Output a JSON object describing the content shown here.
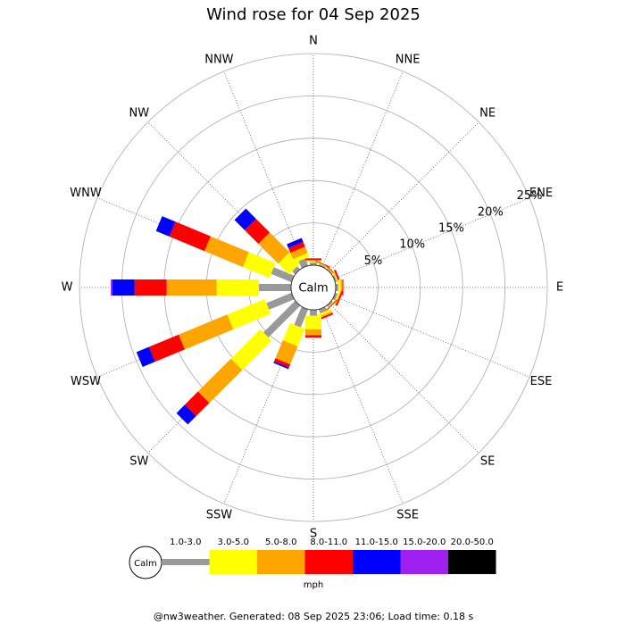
{
  "chart_data": {
    "type": "windrose",
    "title": "Wind rose for 04 Sep 2025",
    "categories": [
      "N",
      "NNE",
      "NE",
      "ENE",
      "E",
      "ESE",
      "SE",
      "SSE",
      "S",
      "SSW",
      "SW",
      "WSW",
      "W",
      "WNW",
      "NW",
      "NNW"
    ],
    "series": [
      {
        "name": "1.0-3.0",
        "color": "#999999",
        "values": [
          0.3,
          0.2,
          0.1,
          0.2,
          0.3,
          0.3,
          0.2,
          0.5,
          0.7,
          2.3,
          5.3,
          3.2,
          3.8,
          2.6,
          0.5,
          0.9
        ]
      },
      {
        "name": "3.0-5.0",
        "color": "#ffff00",
        "values": [
          0.2,
          0.1,
          0.1,
          0.1,
          0.3,
          0.2,
          0.1,
          0.3,
          1.6,
          2.2,
          4.9,
          4.8,
          5.0,
          3.4,
          1.8,
          0.5
        ]
      },
      {
        "name": "5.0-8.0",
        "color": "#ffa500",
        "values": [
          0.1,
          0,
          0,
          0.1,
          0.2,
          0.1,
          0,
          0.2,
          0.7,
          2.3,
          5.5,
          6.2,
          5.9,
          4.9,
          3.3,
          0.8
        ]
      },
      {
        "name": "8.0-11.0",
        "color": "#ff0000",
        "values": [
          0.2,
          0.1,
          0.1,
          0.2,
          0.1,
          0.2,
          0.1,
          0.2,
          0.3,
          0.4,
          2.2,
          3.8,
          3.8,
          4.5,
          2.3,
          0.6
        ]
      },
      {
        "name": "11.0-15.0",
        "color": "#0000ff",
        "values": [
          0,
          0,
          0,
          0,
          0,
          0,
          0,
          0,
          0,
          0.2,
          1.4,
          1.6,
          2.6,
          1.7,
          1.7,
          0.5
        ]
      },
      {
        "name": "15.0-20.0",
        "color": "#a020f0",
        "values": [
          0,
          0,
          0,
          0,
          0,
          0,
          0,
          0,
          0,
          0,
          0,
          0,
          0.2,
          0,
          0,
          0
        ]
      },
      {
        "name": "20.0-50.0",
        "color": "#000000",
        "values": [
          0,
          0,
          0,
          0,
          0,
          0,
          0,
          0,
          0,
          0,
          0,
          0,
          0,
          0,
          0,
          0
        ]
      }
    ],
    "ylim": [
      0,
      25
    ],
    "yticks": [
      {
        "value": 5,
        "label": "5%"
      },
      {
        "value": 10,
        "label": "10%"
      },
      {
        "value": 15,
        "label": "15%"
      },
      {
        "value": 20,
        "label": "20%"
      },
      {
        "value": 25,
        "label": "25%"
      }
    ],
    "grid": true,
    "calm_label": "Calm",
    "unit": "mph",
    "footer": "@nw3weather. Generated: 08 Sep 2025 23:06; Load time: 0.18 s"
  }
}
